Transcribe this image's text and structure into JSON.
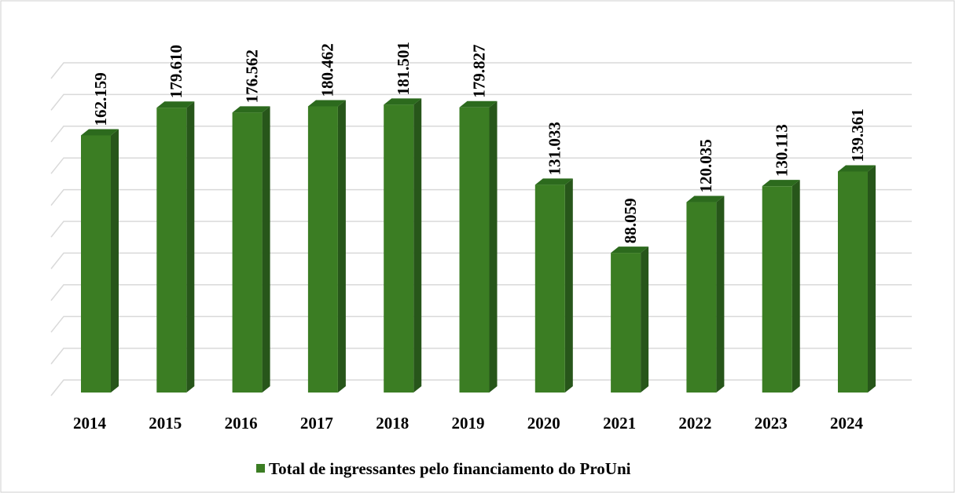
{
  "chart_data": {
    "type": "bar",
    "categories": [
      "2014",
      "2015",
      "2016",
      "2017",
      "2018",
      "2019",
      "2020",
      "2021",
      "2022",
      "2023",
      "2024"
    ],
    "series": [
      {
        "name": "Total de ingressantes pelo financiamento do ProUni",
        "color": "#3b7d23",
        "values": [
          162159,
          179610,
          176562,
          180462,
          181501,
          179827,
          131033,
          88059,
          120035,
          130113,
          139361
        ],
        "value_labels": [
          "162.159",
          "179.610",
          "176.562",
          "180.462",
          "181.501",
          "179.827",
          "131.033",
          "88.059",
          "120.035",
          "130.113",
          "139.361"
        ]
      }
    ],
    "ylim": [
      0,
      200000
    ],
    "yticks": [
      0,
      20000,
      40000,
      60000,
      80000,
      100000,
      120000,
      140000,
      160000,
      180000,
      200000
    ],
    "grid": true,
    "legend": "bottom"
  }
}
